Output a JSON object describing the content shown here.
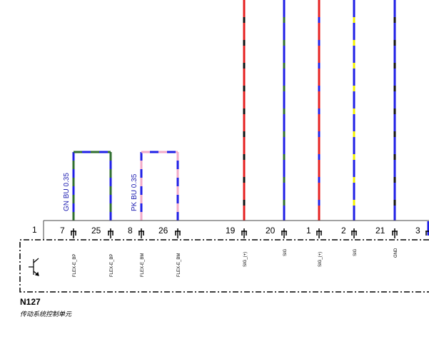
{
  "component": {
    "name": "N127",
    "description": "传动系统控制单元",
    "first_pin": "1"
  },
  "wire_labels": [
    {
      "id": "gnbu",
      "text": "GN BU 0.35"
    },
    {
      "id": "pkbu",
      "text": "PK BU 0.35"
    }
  ],
  "pins": [
    {
      "id": "p7",
      "num": "7",
      "signal": "FLEX-E_BP"
    },
    {
      "id": "p25",
      "num": "25",
      "signal": "FLEX-E_BP"
    },
    {
      "id": "p8",
      "num": "8",
      "signal": "FLEX-E_BM"
    },
    {
      "id": "p26",
      "num": "26",
      "signal": "FLEX-E_BM"
    },
    {
      "id": "p19",
      "num": "19",
      "signal": "SIG_(+)"
    },
    {
      "id": "p20",
      "num": "20",
      "signal": "SIG"
    },
    {
      "id": "p1b",
      "num": "1",
      "signal": "SIG_(+)"
    },
    {
      "id": "p2",
      "num": "2",
      "signal": "SIG"
    },
    {
      "id": "p21",
      "num": "21",
      "signal": "GND"
    },
    {
      "id": "p3",
      "num": "3",
      "signal": ""
    }
  ],
  "colors": {
    "blue": "#1f1fe6",
    "green": "#2f6e2f",
    "pink": "#f2aac8",
    "red": "#e62020",
    "black": "#111111",
    "yellow": "#f2f200"
  }
}
